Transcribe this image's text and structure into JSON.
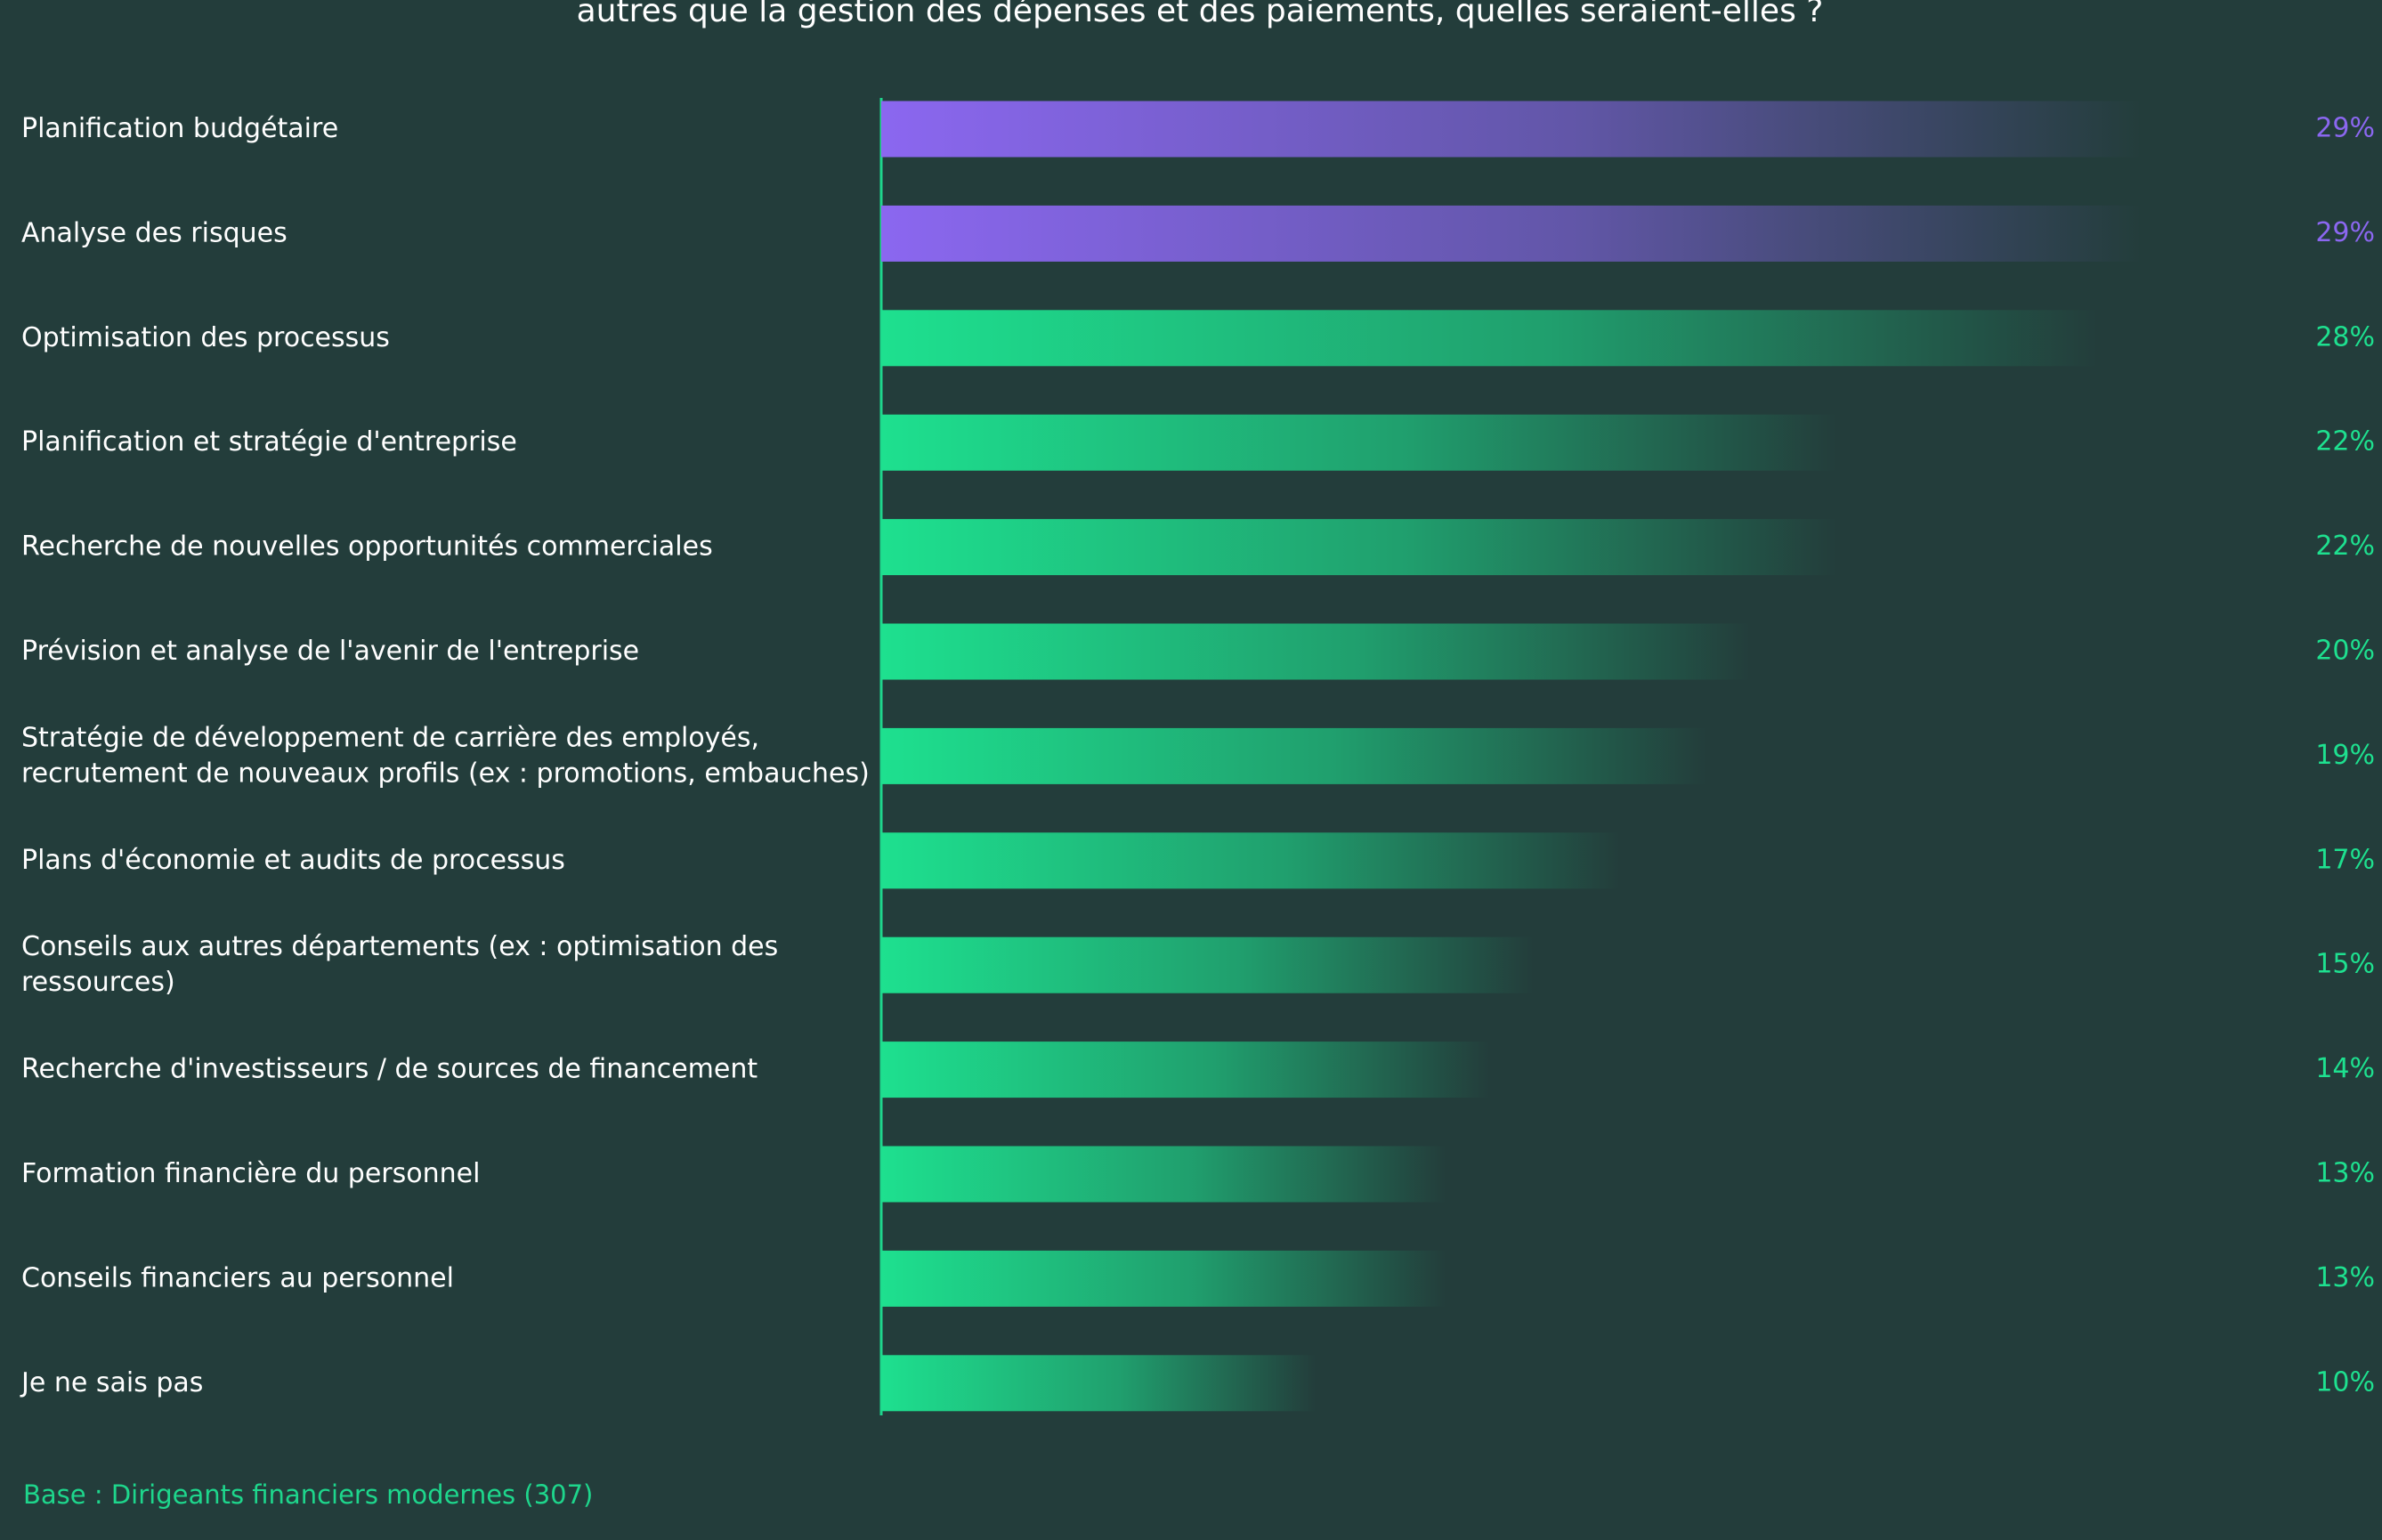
{
  "chart_data": {
    "type": "bar",
    "orientation": "horizontal",
    "title": "autres que la gestion des dépenses et des paiements, quelles seraient-elles ?",
    "categories": [
      "Planification budgétaire",
      "Analyse des risques",
      "Optimisation des processus",
      "Planification et stratégie d'entreprise",
      "Recherche de nouvelles opportunités commerciales",
      "Prévision et analyse de l'avenir de l'entreprise",
      "Stratégie de développement de carrière des employés,\nrecrutement de nouveaux profils (ex : promotions, embauches)",
      "Plans d'économie et audits de processus",
      "Conseils aux autres départements (ex : optimisation des\nressources)",
      "Recherche d'investisseurs / de sources de financement",
      "Formation financière du personnel",
      "Conseils financiers au personnel",
      "Je ne sais pas"
    ],
    "values": [
      29,
      29,
      28,
      22,
      22,
      20,
      19,
      17,
      15,
      14,
      13,
      13,
      10
    ],
    "value_labels": [
      "29%",
      "29%",
      "28%",
      "22%",
      "22%",
      "20%",
      "19%",
      "17%",
      "15%",
      "14%",
      "13%",
      "13%",
      "10%"
    ],
    "colors": [
      "#8b67f0",
      "#8b67f0",
      "#1ee08f",
      "#1ee08f",
      "#1ee08f",
      "#1ee08f",
      "#1ee08f",
      "#1ee08f",
      "#1ee08f",
      "#1ee08f",
      "#1ee08f",
      "#1ee08f",
      "#1ee08f"
    ],
    "footnote": "Base : Dirigeants financiers modernes (307)"
  }
}
